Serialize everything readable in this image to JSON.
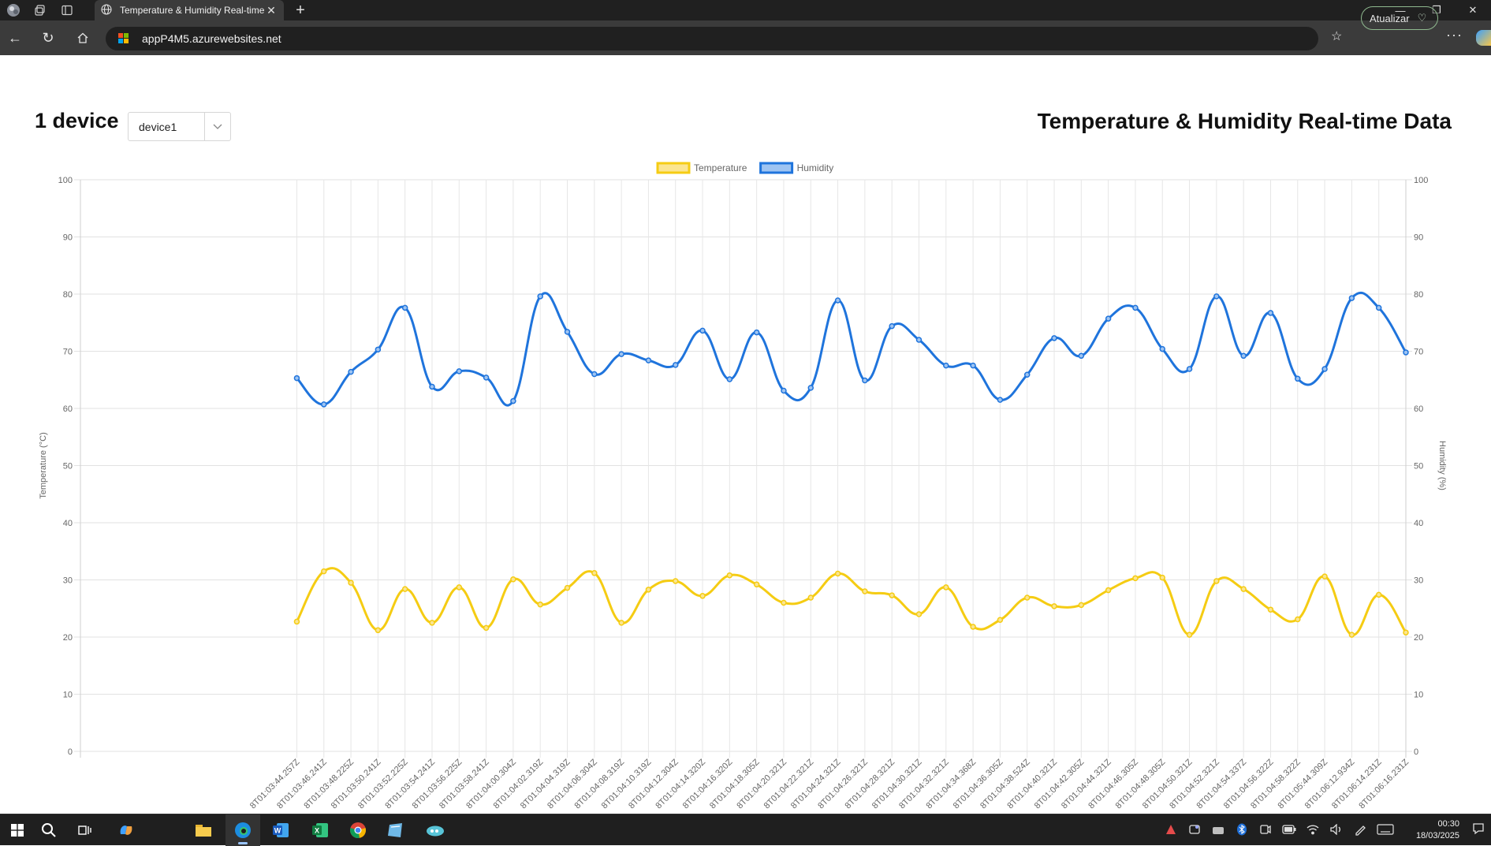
{
  "browser": {
    "tab_title": "Temperature & Humidity Real-time",
    "url": "appP4M5.azurewebsites.net",
    "refresh_button_label": "Atualizar"
  },
  "page": {
    "device_count": "1 device",
    "device_select_value": "device1",
    "title": "Temperature & Humidity Real-time Data"
  },
  "chart_data": {
    "type": "line",
    "title": "",
    "legend_position": "top-center",
    "grid": true,
    "y_left": {
      "label": "Temperature (°C)",
      "min": 0,
      "max": 100,
      "step": 10
    },
    "y_right": {
      "label": "Humidity (%)",
      "min": 0,
      "max": 100,
      "step": 10
    },
    "ticks": [
      "0",
      "10",
      "20",
      "30",
      "40",
      "50",
      "60",
      "70",
      "80",
      "90",
      "100"
    ],
    "x_categories_count_leading_empty": 8,
    "x": [
      "8T01:03:44.257Z",
      "8T01:03:46.241Z",
      "8T01:03:48.225Z",
      "8T01:03:50.241Z",
      "8T01:03:52.225Z",
      "8T01:03:54.241Z",
      "8T01:03:56.225Z",
      "8T01:03:58.241Z",
      "8T01:04:00.304Z",
      "8T01:04:02.319Z",
      "8T01:04:04.319Z",
      "8T01:04:06.304Z",
      "8T01:04:08.319Z",
      "8T01:04:10.319Z",
      "8T01:04:12.304Z",
      "8T01:04:14.320Z",
      "8T01:04:16.320Z",
      "8T01:04:18.305Z",
      "8T01:04:20.321Z",
      "8T01:04:22.321Z",
      "8T01:04:24.321Z",
      "8T01:04:26.321Z",
      "8T01:04:28.321Z",
      "8T01:04:30.321Z",
      "8T01:04:32.321Z",
      "8T01:04:34.368Z",
      "8T01:04:36.305Z",
      "8T01:04:38.524Z",
      "8T01:04:40.321Z",
      "8T01:04:42.305Z",
      "8T01:04:44.321Z",
      "8T01:04:46.305Z",
      "8T01:04:48.305Z",
      "8T01:04:50.321Z",
      "8T01:04:52.321Z",
      "8T01:04:54.337Z",
      "8T01:04:56.322Z",
      "8T01:04:58.322Z",
      "8T01:05:44.309Z",
      "8T01:06:12.934Z",
      "8T01:06:14.231Z",
      "8T01:06:16.231Z"
    ],
    "series": [
      {
        "name": "Temperature",
        "axis": "left",
        "color": "#f5cc13",
        "fill": "#fbe590",
        "values": [
          22.7,
          31.5,
          29.5,
          21.2,
          28.4,
          22.5,
          28.7,
          21.6,
          30.1,
          25.7,
          28.6,
          31.2,
          22.5,
          28.3,
          29.8,
          27.2,
          30.8,
          29.2,
          26.0,
          26.9,
          31.1,
          28.0,
          27.3,
          24.0,
          28.7,
          21.8,
          23.0,
          26.9,
          25.4,
          25.6,
          28.2,
          30.3,
          30.4,
          20.4,
          29.8,
          28.4,
          24.8,
          23.1,
          30.6,
          20.4,
          27.4,
          20.8
        ]
      },
      {
        "name": "Humidity",
        "axis": "right",
        "color": "#1f74dc",
        "fill": "#9ec4f2",
        "values": [
          65.3,
          60.7,
          66.4,
          70.3,
          77.6,
          63.8,
          66.5,
          65.4,
          61.3,
          79.6,
          73.4,
          66.0,
          69.5,
          68.4,
          67.6,
          73.6,
          65.1,
          73.3,
          63.1,
          63.6,
          78.9,
          64.9,
          74.4,
          72.0,
          67.5,
          67.5,
          61.5,
          65.9,
          72.3,
          69.2,
          75.7,
          77.6,
          70.4,
          66.9,
          79.6,
          69.2,
          76.7,
          65.2,
          66.9,
          79.3,
          77.6,
          69.8
        ]
      }
    ]
  },
  "taskbar": {
    "time": "00:30",
    "date": "18/03/2025"
  },
  "icons": {
    "app_logo": "globe-icon",
    "workspaces": "workspaces-icon",
    "tab_actions": "tab-actions-icon"
  }
}
